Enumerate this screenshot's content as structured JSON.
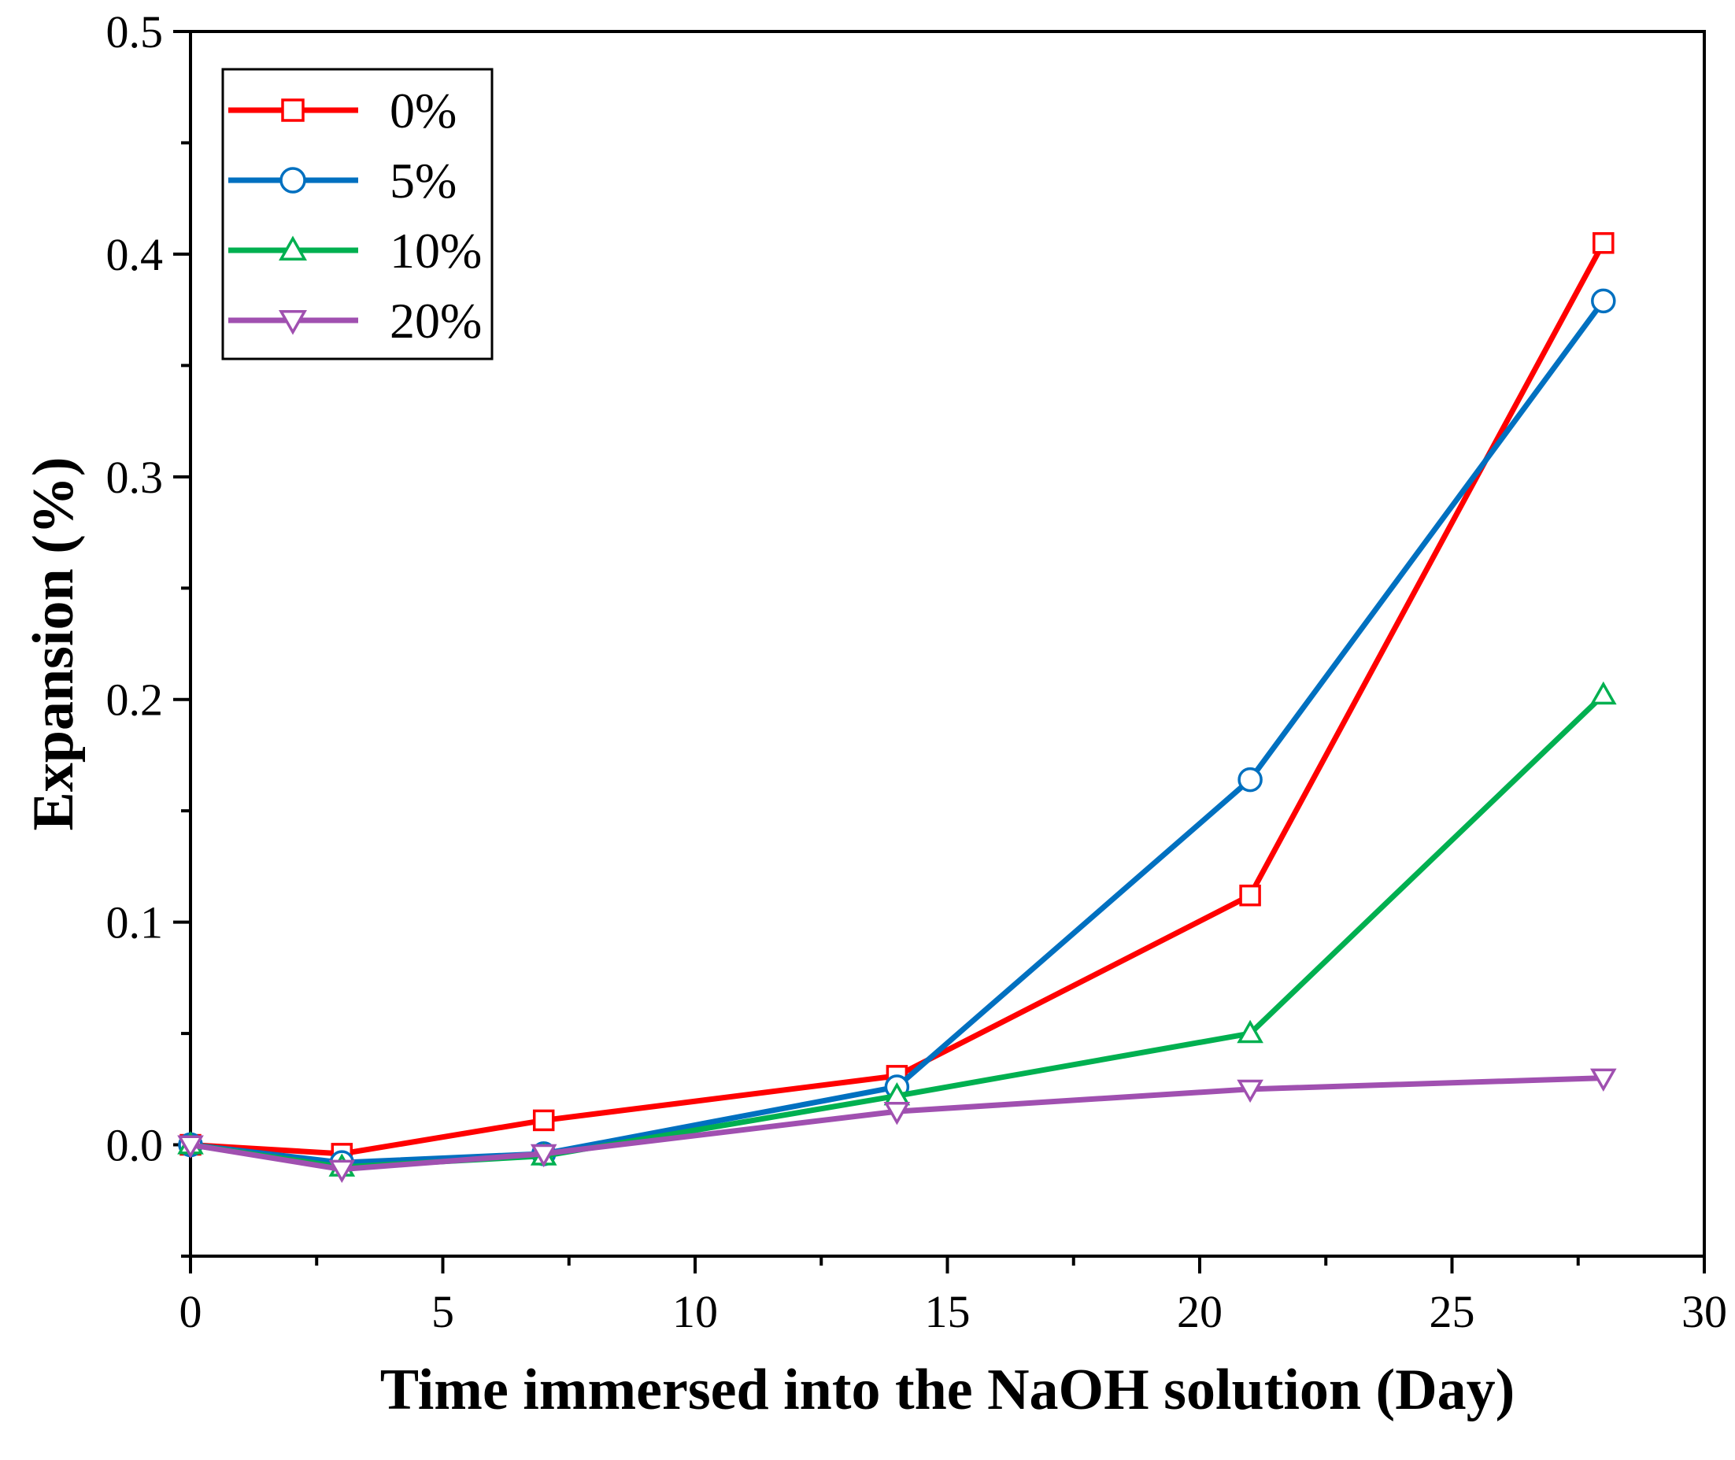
{
  "chart_data": {
    "type": "line",
    "title": "",
    "xlabel": "Time immersed into the NaOH solution (Day)",
    "ylabel": "Expansion (%)",
    "xlim": [
      0,
      30
    ],
    "ylim": [
      -0.05,
      0.5
    ],
    "xticks": [
      0,
      5,
      10,
      15,
      20,
      25,
      30
    ],
    "xtick_labels": [
      "0",
      "5",
      "10",
      "15",
      "20",
      "25",
      "30"
    ],
    "yticks": [
      0.0,
      0.1,
      0.2,
      0.3,
      0.4,
      0.5
    ],
    "ytick_labels": [
      "0.0",
      "0.1",
      "0.2",
      "0.3",
      "0.4",
      "0.5"
    ],
    "x": [
      0,
      3,
      7,
      14,
      21,
      28
    ],
    "legend_position": "top-left",
    "grid": false,
    "series": [
      {
        "name": "0%",
        "color": "#ff0000",
        "marker": "square",
        "values": [
          0.0,
          -0.004,
          0.011,
          0.031,
          0.112,
          0.405
        ]
      },
      {
        "name": "5%",
        "color": "#0070c0",
        "marker": "circle",
        "values": [
          0.0,
          -0.008,
          -0.004,
          0.026,
          0.164,
          0.379
        ]
      },
      {
        "name": "10%",
        "color": "#00b050",
        "marker": "triangle-up",
        "values": [
          0.0,
          -0.01,
          -0.005,
          0.022,
          0.05,
          0.202
        ]
      },
      {
        "name": "20%",
        "color": "#a050b0",
        "marker": "triangle-down",
        "values": [
          0.0,
          -0.011,
          -0.004,
          0.015,
          0.025,
          0.03
        ]
      }
    ]
  }
}
